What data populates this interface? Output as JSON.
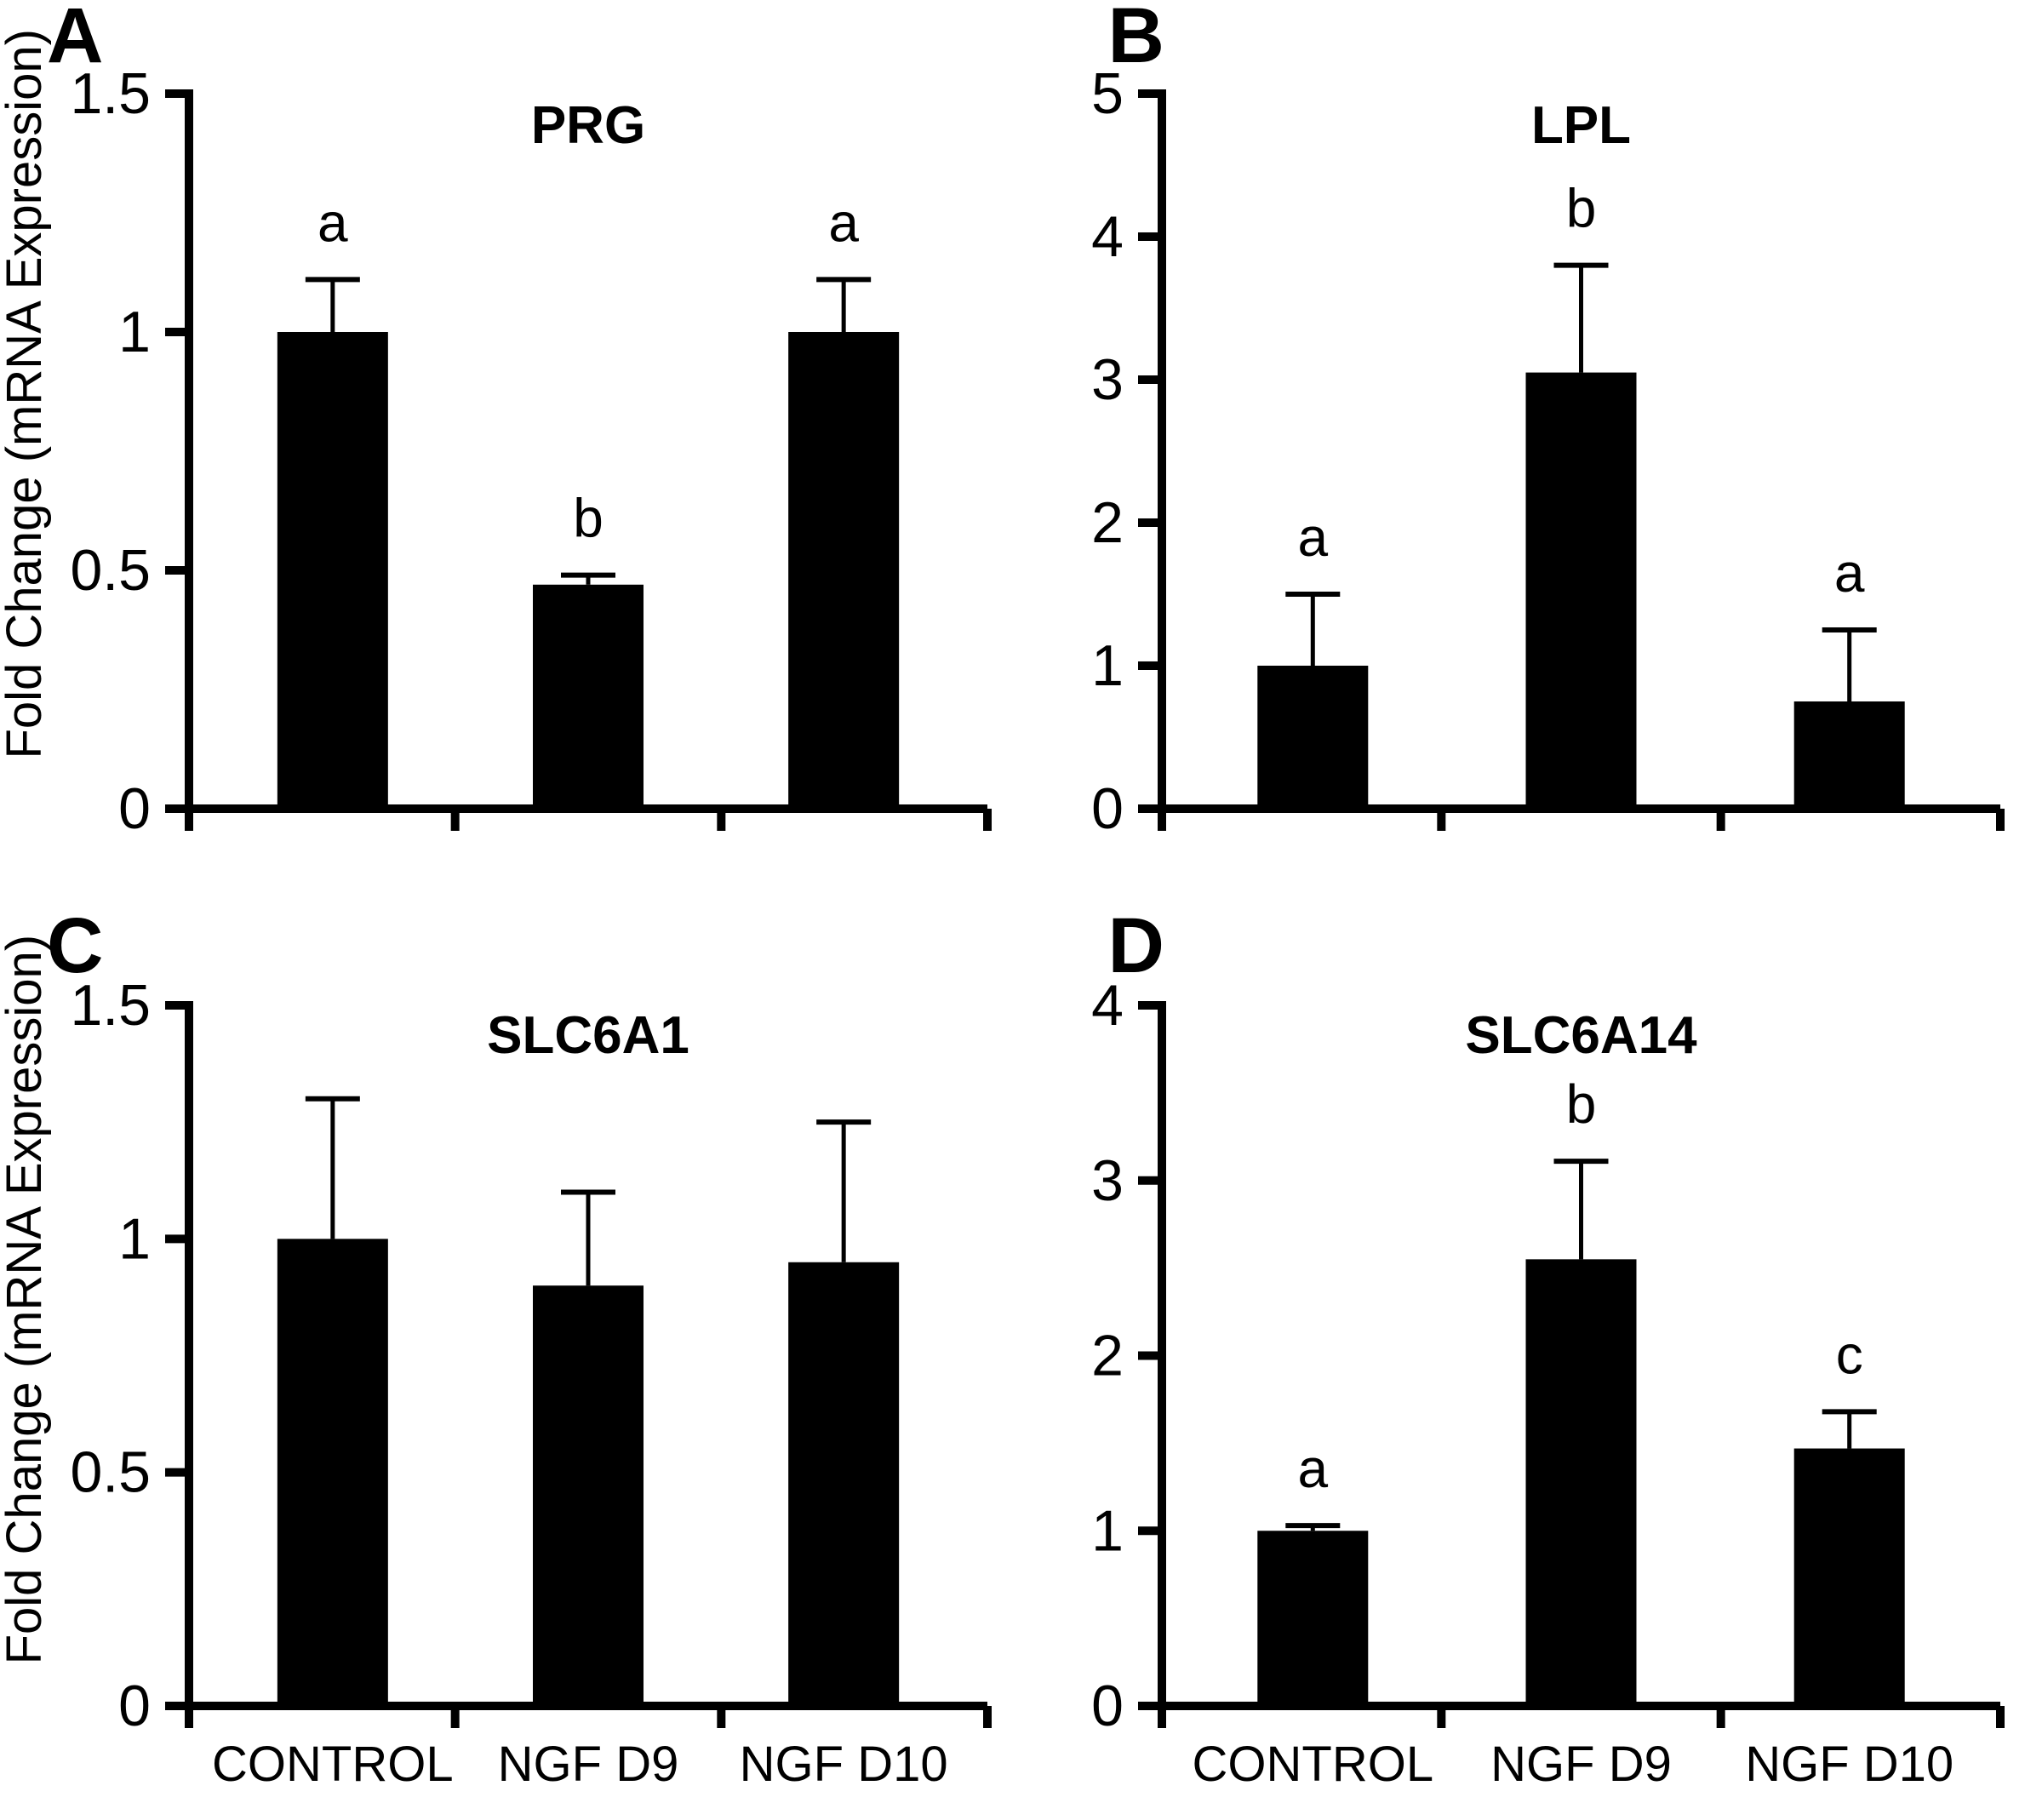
{
  "figure": {
    "background": "#ffffff",
    "bar_color": "#000000",
    "axis_color": "#000000",
    "shared_y_axis_label": "Fold Change (mRNA Expression)",
    "categories": [
      "CONTROL",
      "NGF D9",
      "NGF D10"
    ]
  },
  "chart_data": [
    {
      "type": "bar",
      "panel": "A",
      "title": "PRG",
      "categories": [
        "CONTROL",
        "NGF D9",
        "NGF D10"
      ],
      "values": [
        1.0,
        0.47,
        1.0
      ],
      "errors": [
        0.11,
        0.02,
        0.11
      ],
      "sig_letters": [
        "a",
        "b",
        "a"
      ],
      "ylabel": "Fold Change (mRNA Expression)",
      "xlabel": "",
      "ylim": [
        0,
        1.5
      ],
      "yticks": [
        0,
        0.5,
        1,
        1.5
      ],
      "ytick_labels": [
        "0",
        "0.5",
        "1",
        "1.5"
      ],
      "show_x_labels": false,
      "grid": false,
      "legend": false
    },
    {
      "type": "bar",
      "panel": "B",
      "title": "LPL",
      "categories": [
        "CONTROL",
        "NGF D9",
        "NGF D10"
      ],
      "values": [
        1.0,
        3.05,
        0.75
      ],
      "errors": [
        0.5,
        0.75,
        0.5
      ],
      "sig_letters": [
        "a",
        "b",
        "a"
      ],
      "ylabel": "",
      "xlabel": "",
      "ylim": [
        0,
        5
      ],
      "yticks": [
        0,
        1,
        2,
        3,
        4,
        5
      ],
      "ytick_labels": [
        "0",
        "1",
        "2",
        "3",
        "4",
        "5"
      ],
      "show_x_labels": false,
      "grid": false,
      "legend": false
    },
    {
      "type": "bar",
      "panel": "C",
      "title": "SLC6A1",
      "categories": [
        "CONTROL",
        "NGF D9",
        "NGF D10"
      ],
      "values": [
        1.0,
        0.9,
        0.95
      ],
      "errors": [
        0.3,
        0.2,
        0.3
      ],
      "sig_letters": [
        null,
        null,
        null
      ],
      "ylabel": "Fold Change (mRNA Expression)",
      "xlabel": "",
      "ylim": [
        0,
        1.5
      ],
      "yticks": [
        0,
        0.5,
        1,
        1.5
      ],
      "ytick_labels": [
        "0",
        "0.5",
        "1",
        "1.5"
      ],
      "show_x_labels": true,
      "grid": false,
      "legend": false
    },
    {
      "type": "bar",
      "panel": "D",
      "title": "SLC6A14",
      "categories": [
        "CONTROL",
        "NGF D9",
        "NGF D10"
      ],
      "values": [
        1.0,
        2.55,
        1.47
      ],
      "errors": [
        0.03,
        0.56,
        0.21
      ],
      "sig_letters": [
        "a",
        "b",
        "c"
      ],
      "ylabel": "",
      "xlabel": "",
      "ylim": [
        0,
        4
      ],
      "yticks": [
        0,
        1,
        2,
        3,
        4
      ],
      "ytick_labels": [
        "0",
        "1",
        "2",
        "3",
        "4"
      ],
      "show_x_labels": true,
      "grid": false,
      "legend": false
    }
  ]
}
